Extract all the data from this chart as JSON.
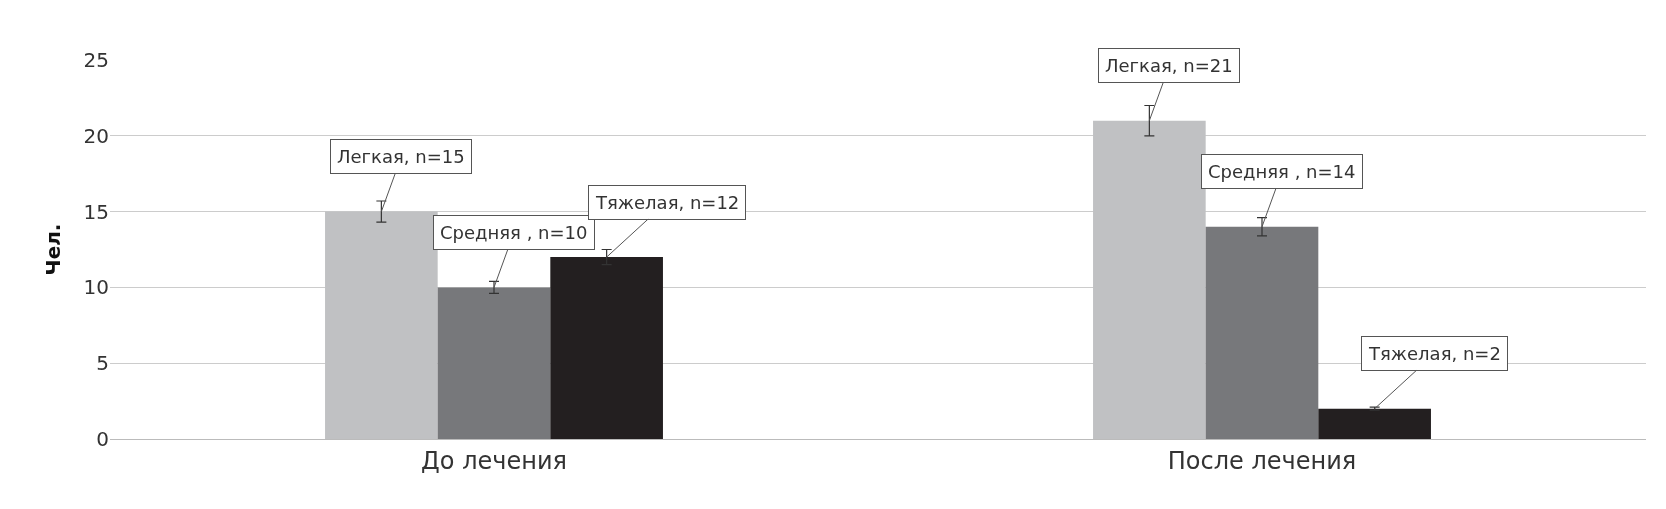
{
  "chart_data": {
    "type": "bar",
    "ylabel": "Чел.",
    "categories": [
      "До лечения",
      "После лечения"
    ],
    "series": [
      {
        "color": "#c0c1c3",
        "values": [
          15,
          21
        ],
        "errors": [
          0.7,
          1
        ],
        "value_labels": [
          "Легкая, n=15",
          "Легкая, n=21"
        ]
      },
      {
        "color": "#77787b",
        "values": [
          10,
          14
        ],
        "errors": [
          0.4,
          0.6
        ],
        "value_labels": [
          "Средняя , n=10",
          "Средняя , n=14"
        ]
      },
      {
        "color": "#231f20",
        "values": [
          12,
          2
        ],
        "errors": [
          0.5,
          0.1
        ],
        "value_labels": [
          "Тяжелая, n=12",
          "Тяжелая, n=2"
        ]
      }
    ],
    "ylim": [
      0,
      25
    ],
    "yticks": [
      0,
      5,
      10,
      15,
      20,
      25
    ],
    "grid": "y"
  }
}
